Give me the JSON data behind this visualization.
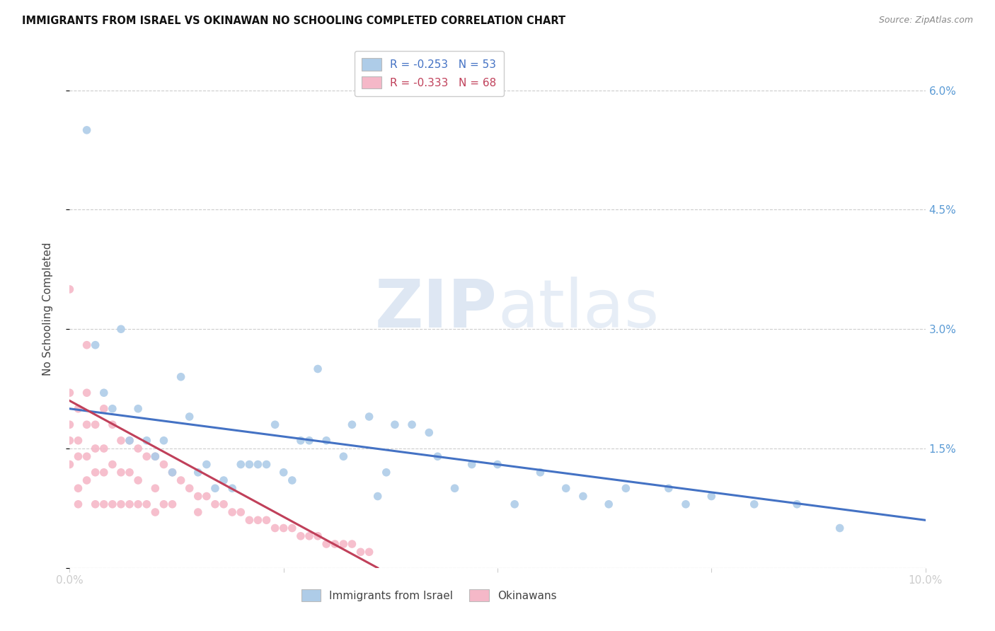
{
  "title": "IMMIGRANTS FROM ISRAEL VS OKINAWAN NO SCHOOLING COMPLETED CORRELATION CHART",
  "source": "Source: ZipAtlas.com",
  "ylabel": "No Schooling Completed",
  "xlim": [
    0.0,
    0.1
  ],
  "ylim": [
    0.0,
    0.065
  ],
  "yticks": [
    0.0,
    0.015,
    0.03,
    0.045,
    0.06
  ],
  "ytick_labels": [
    "",
    "1.5%",
    "3.0%",
    "4.5%",
    "6.0%"
  ],
  "xticks": [
    0.0,
    0.025,
    0.05,
    0.075,
    0.1
  ],
  "xtick_labels": [
    "0.0%",
    "",
    "",
    "",
    "10.0%"
  ],
  "legend_r1": "R = -0.253   N = 53",
  "legend_r2": "R = -0.333   N = 68",
  "color_israel": "#aecce8",
  "color_okinawan": "#f5b8c8",
  "line_color_israel": "#4472c4",
  "line_color_okinawan": "#c0405a",
  "watermark_zip": "ZIP",
  "watermark_atlas": "atlas",
  "israel_scatter_x": [
    0.002,
    0.003,
    0.004,
    0.005,
    0.006,
    0.007,
    0.008,
    0.009,
    0.01,
    0.011,
    0.012,
    0.013,
    0.014,
    0.015,
    0.016,
    0.017,
    0.018,
    0.019,
    0.02,
    0.021,
    0.022,
    0.023,
    0.024,
    0.025,
    0.026,
    0.027,
    0.028,
    0.029,
    0.03,
    0.032,
    0.033,
    0.035,
    0.036,
    0.037,
    0.038,
    0.04,
    0.042,
    0.043,
    0.045,
    0.047,
    0.05,
    0.052,
    0.055,
    0.058,
    0.06,
    0.063,
    0.065,
    0.07,
    0.072,
    0.075,
    0.08,
    0.085,
    0.09
  ],
  "israel_scatter_y": [
    0.055,
    0.028,
    0.022,
    0.02,
    0.03,
    0.016,
    0.02,
    0.016,
    0.014,
    0.016,
    0.012,
    0.024,
    0.019,
    0.012,
    0.013,
    0.01,
    0.011,
    0.01,
    0.013,
    0.013,
    0.013,
    0.013,
    0.018,
    0.012,
    0.011,
    0.016,
    0.016,
    0.025,
    0.016,
    0.014,
    0.018,
    0.019,
    0.009,
    0.012,
    0.018,
    0.018,
    0.017,
    0.014,
    0.01,
    0.013,
    0.013,
    0.008,
    0.012,
    0.01,
    0.009,
    0.008,
    0.01,
    0.01,
    0.008,
    0.009,
    0.008,
    0.008,
    0.005
  ],
  "okinawan_scatter_x": [
    0.0,
    0.0,
    0.0,
    0.0,
    0.0,
    0.001,
    0.001,
    0.001,
    0.001,
    0.001,
    0.002,
    0.002,
    0.002,
    0.002,
    0.002,
    0.003,
    0.003,
    0.003,
    0.003,
    0.004,
    0.004,
    0.004,
    0.004,
    0.005,
    0.005,
    0.005,
    0.006,
    0.006,
    0.006,
    0.007,
    0.007,
    0.007,
    0.008,
    0.008,
    0.008,
    0.009,
    0.009,
    0.01,
    0.01,
    0.01,
    0.011,
    0.011,
    0.012,
    0.012,
    0.013,
    0.014,
    0.015,
    0.015,
    0.016,
    0.017,
    0.018,
    0.019,
    0.02,
    0.021,
    0.022,
    0.023,
    0.024,
    0.025,
    0.026,
    0.027,
    0.028,
    0.029,
    0.03,
    0.031,
    0.032,
    0.033,
    0.034,
    0.035
  ],
  "okinawan_scatter_y": [
    0.022,
    0.018,
    0.016,
    0.013,
    0.035,
    0.014,
    0.016,
    0.02,
    0.01,
    0.008,
    0.022,
    0.018,
    0.014,
    0.011,
    0.028,
    0.018,
    0.015,
    0.012,
    0.008,
    0.02,
    0.015,
    0.012,
    0.008,
    0.018,
    0.013,
    0.008,
    0.016,
    0.012,
    0.008,
    0.016,
    0.012,
    0.008,
    0.015,
    0.011,
    0.008,
    0.014,
    0.008,
    0.014,
    0.01,
    0.007,
    0.013,
    0.008,
    0.012,
    0.008,
    0.011,
    0.01,
    0.009,
    0.007,
    0.009,
    0.008,
    0.008,
    0.007,
    0.007,
    0.006,
    0.006,
    0.006,
    0.005,
    0.005,
    0.005,
    0.004,
    0.004,
    0.004,
    0.003,
    0.003,
    0.003,
    0.003,
    0.002,
    0.002
  ],
  "israel_trend_x": [
    0.0,
    0.1
  ],
  "israel_trend_y": [
    0.02,
    0.006
  ],
  "okinawan_trend_x": [
    0.0,
    0.036
  ],
  "okinawan_trend_y": [
    0.021,
    0.0
  ]
}
